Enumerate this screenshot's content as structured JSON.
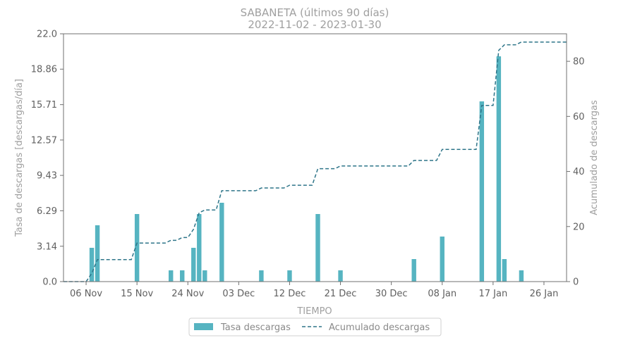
{
  "chart_data": {
    "type": "bar",
    "title": "SABANETA (últimos 90 días)",
    "subtitle": "2022-11-02  -  2023-01-30",
    "xlabel": "TIEMPO",
    "ylabel_left": "Tasa de descargas [descargas/día]",
    "ylabel_right": "Acumulado de descargas",
    "x_range": [
      "2022-11-02",
      "2023-01-30"
    ],
    "x_ticks": [
      {
        "date": "2022-11-06",
        "label": "06 Nov"
      },
      {
        "date": "2022-11-15",
        "label": "15 Nov"
      },
      {
        "date": "2022-11-24",
        "label": "24 Nov"
      },
      {
        "date": "2022-12-03",
        "label": "03 Dec"
      },
      {
        "date": "2022-12-12",
        "label": "12 Dec"
      },
      {
        "date": "2022-12-21",
        "label": "21 Dec"
      },
      {
        "date": "2022-12-30",
        "label": "30 Dec"
      },
      {
        "date": "2023-01-08",
        "label": "08 Jan"
      },
      {
        "date": "2023-01-17",
        "label": "17 Jan"
      },
      {
        "date": "2023-01-26",
        "label": "26 Jan"
      }
    ],
    "ylim_left": [
      0,
      22.0
    ],
    "yticks_left": [
      "0.0",
      "3.14",
      "6.29",
      "9.43",
      "12.57",
      "15.71",
      "18.86",
      "22.0"
    ],
    "ylim_right": [
      0,
      90
    ],
    "yticks_right": [
      "0",
      "20",
      "40",
      "60",
      "80"
    ],
    "series": [
      {
        "name": "Tasa descargas",
        "kind": "bar",
        "color": "#56b4c1",
        "points": [
          {
            "date": "2022-11-07",
            "value": 3
          },
          {
            "date": "2022-11-08",
            "value": 5
          },
          {
            "date": "2022-11-15",
            "value": 6
          },
          {
            "date": "2022-11-21",
            "value": 1
          },
          {
            "date": "2022-11-23",
            "value": 1
          },
          {
            "date": "2022-11-25",
            "value": 3
          },
          {
            "date": "2022-11-26",
            "value": 6
          },
          {
            "date": "2022-11-27",
            "value": 1
          },
          {
            "date": "2022-11-30",
            "value": 7
          },
          {
            "date": "2022-12-07",
            "value": 1
          },
          {
            "date": "2022-12-12",
            "value": 1
          },
          {
            "date": "2022-12-17",
            "value": 6
          },
          {
            "date": "2022-12-21",
            "value": 1
          },
          {
            "date": "2023-01-03",
            "value": 2
          },
          {
            "date": "2023-01-08",
            "value": 4
          },
          {
            "date": "2023-01-15",
            "value": 16
          },
          {
            "date": "2023-01-18",
            "value": 20
          },
          {
            "date": "2023-01-19",
            "value": 2
          },
          {
            "date": "2023-01-22",
            "value": 1
          }
        ]
      },
      {
        "name": "Acumulado descargas",
        "kind": "line",
        "style": "dashed",
        "color": "#2e7589",
        "points": [
          {
            "date": "2022-11-02",
            "value": 0
          },
          {
            "date": "2022-11-06",
            "value": 0
          },
          {
            "date": "2022-11-07",
            "value": 3
          },
          {
            "date": "2022-11-08",
            "value": 8
          },
          {
            "date": "2022-11-14",
            "value": 8
          },
          {
            "date": "2022-11-15",
            "value": 14
          },
          {
            "date": "2022-11-20",
            "value": 14
          },
          {
            "date": "2022-11-21",
            "value": 15
          },
          {
            "date": "2022-11-22",
            "value": 15
          },
          {
            "date": "2022-11-23",
            "value": 16
          },
          {
            "date": "2022-11-24",
            "value": 16
          },
          {
            "date": "2022-11-25",
            "value": 19
          },
          {
            "date": "2022-11-26",
            "value": 25
          },
          {
            "date": "2022-11-27",
            "value": 26
          },
          {
            "date": "2022-11-29",
            "value": 26
          },
          {
            "date": "2022-11-30",
            "value": 33
          },
          {
            "date": "2022-12-06",
            "value": 33
          },
          {
            "date": "2022-12-07",
            "value": 34
          },
          {
            "date": "2022-12-11",
            "value": 34
          },
          {
            "date": "2022-12-12",
            "value": 35
          },
          {
            "date": "2022-12-16",
            "value": 35
          },
          {
            "date": "2022-12-17",
            "value": 41
          },
          {
            "date": "2022-12-20",
            "value": 41
          },
          {
            "date": "2022-12-21",
            "value": 42
          },
          {
            "date": "2023-01-02",
            "value": 42
          },
          {
            "date": "2023-01-03",
            "value": 44
          },
          {
            "date": "2023-01-07",
            "value": 44
          },
          {
            "date": "2023-01-08",
            "value": 48
          },
          {
            "date": "2023-01-14",
            "value": 48
          },
          {
            "date": "2023-01-15",
            "value": 64
          },
          {
            "date": "2023-01-17",
            "value": 64
          },
          {
            "date": "2023-01-18",
            "value": 84
          },
          {
            "date": "2023-01-19",
            "value": 86
          },
          {
            "date": "2023-01-21",
            "value": 86
          },
          {
            "date": "2023-01-22",
            "value": 87
          },
          {
            "date": "2023-01-30",
            "value": 87
          }
        ]
      }
    ],
    "grid": false,
    "legend_position": "bottom-center"
  }
}
